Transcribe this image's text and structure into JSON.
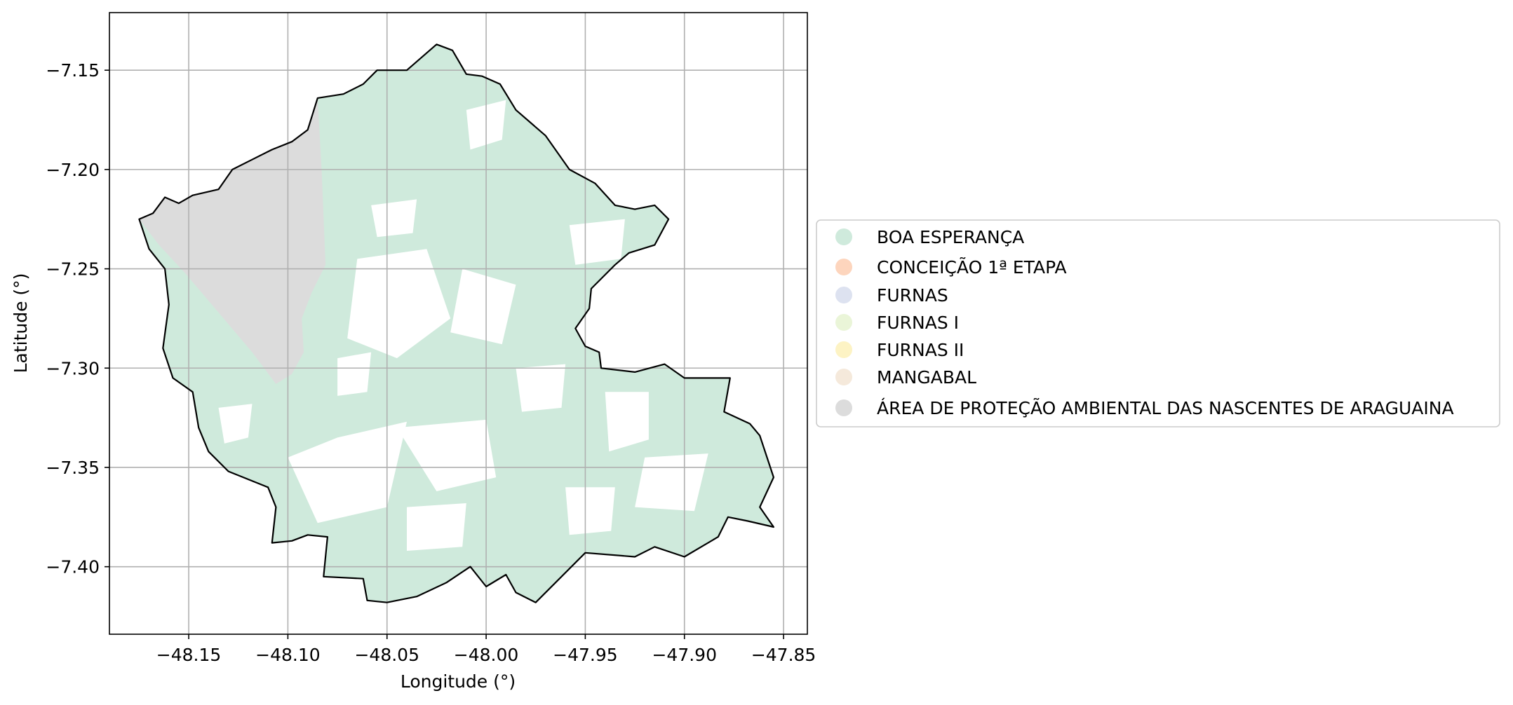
{
  "chart_data": {
    "type": "map",
    "xlabel": "Longitude (°)",
    "ylabel": "Latitude (°)",
    "xlim": [
      -48.19,
      -47.838
    ],
    "ylim": [
      -7.434,
      -7.121
    ],
    "xticks": [
      -48.15,
      -48.1,
      -48.05,
      -48.0,
      -47.95,
      -47.9,
      -47.85
    ],
    "xtick_labels": [
      "−48.15",
      "−48.10",
      "−48.05",
      "−48.00",
      "−47.95",
      "−47.90",
      "−47.85"
    ],
    "yticks": [
      -7.15,
      -7.2,
      -7.25,
      -7.3,
      -7.35,
      -7.4
    ],
    "ytick_labels": [
      "−7.15",
      "−7.20",
      "−7.25",
      "−7.30",
      "−7.35",
      "−7.40"
    ],
    "grid": true,
    "legend_position": "center-left outside",
    "legend": [
      {
        "label": "BOA ESPERANÇA",
        "color": "#cfeadc"
      },
      {
        "label": "CONCEIÇÃO 1ª ETAPA",
        "color": "#fdd5bd"
      },
      {
        "label": "FURNAS",
        "color": "#dde2f0"
      },
      {
        "label": "FURNAS I",
        "color": "#eaf5d8"
      },
      {
        "label": "FURNAS II",
        "color": "#fdf3c4"
      },
      {
        "label": "MANGABAL",
        "color": "#f5e9db"
      },
      {
        "label": "ÁREA DE PROTEÇÃO AMBIENTAL DAS NASCENTES DE ARAGUAINA",
        "color": "#dcdcdc"
      }
    ],
    "boundary_polygon": [
      [
        -48.175,
        -7.225
      ],
      [
        -48.168,
        -7.222
      ],
      [
        -48.162,
        -7.214
      ],
      [
        -48.155,
        -7.217
      ],
      [
        -48.148,
        -7.213
      ],
      [
        -48.135,
        -7.21
      ],
      [
        -48.128,
        -7.2
      ],
      [
        -48.118,
        -7.195
      ],
      [
        -48.108,
        -7.19
      ],
      [
        -48.098,
        -7.186
      ],
      [
        -48.09,
        -7.18
      ],
      [
        -48.085,
        -7.164
      ],
      [
        -48.072,
        -7.162
      ],
      [
        -48.062,
        -7.157
      ],
      [
        -48.055,
        -7.15
      ],
      [
        -48.04,
        -7.15
      ],
      [
        -48.025,
        -7.137
      ],
      [
        -48.017,
        -7.14
      ],
      [
        -48.01,
        -7.152
      ],
      [
        -48.002,
        -7.153
      ],
      [
        -47.993,
        -7.157
      ],
      [
        -47.985,
        -7.17
      ],
      [
        -47.97,
        -7.183
      ],
      [
        -47.958,
        -7.2
      ],
      [
        -47.945,
        -7.207
      ],
      [
        -47.935,
        -7.218
      ],
      [
        -47.925,
        -7.22
      ],
      [
        -47.915,
        -7.218
      ],
      [
        -47.908,
        -7.225
      ],
      [
        -47.915,
        -7.238
      ],
      [
        -47.928,
        -7.242
      ],
      [
        -47.935,
        -7.248
      ],
      [
        -47.947,
        -7.26
      ],
      [
        -47.948,
        -7.27
      ],
      [
        -47.955,
        -7.28
      ],
      [
        -47.95,
        -7.289
      ],
      [
        -47.943,
        -7.292
      ],
      [
        -47.942,
        -7.3
      ],
      [
        -47.925,
        -7.302
      ],
      [
        -47.91,
        -7.298
      ],
      [
        -47.9,
        -7.305
      ],
      [
        -47.877,
        -7.305
      ],
      [
        -47.88,
        -7.322
      ],
      [
        -47.867,
        -7.328
      ],
      [
        -47.862,
        -7.334
      ],
      [
        -47.855,
        -7.355
      ],
      [
        -47.862,
        -7.37
      ],
      [
        -47.855,
        -7.38
      ],
      [
        -47.868,
        -7.377
      ],
      [
        -47.878,
        -7.375
      ],
      [
        -47.883,
        -7.385
      ],
      [
        -47.9,
        -7.395
      ],
      [
        -47.915,
        -7.39
      ],
      [
        -47.925,
        -7.395
      ],
      [
        -47.95,
        -7.393
      ],
      [
        -47.962,
        -7.405
      ],
      [
        -47.975,
        -7.418
      ],
      [
        -47.985,
        -7.413
      ],
      [
        -47.99,
        -7.404
      ],
      [
        -48.0,
        -7.41
      ],
      [
        -48.008,
        -7.4
      ],
      [
        -48.02,
        -7.408
      ],
      [
        -48.035,
        -7.415
      ],
      [
        -48.05,
        -7.418
      ],
      [
        -48.06,
        -7.417
      ],
      [
        -48.062,
        -7.406
      ],
      [
        -48.082,
        -7.405
      ],
      [
        -48.08,
        -7.385
      ],
      [
        -48.09,
        -7.384
      ],
      [
        -48.098,
        -7.387
      ],
      [
        -48.108,
        -7.388
      ],
      [
        -48.106,
        -7.37
      ],
      [
        -48.11,
        -7.36
      ],
      [
        -48.13,
        -7.352
      ],
      [
        -48.14,
        -7.342
      ],
      [
        -48.145,
        -7.33
      ],
      [
        -48.148,
        -7.312
      ],
      [
        -48.158,
        -7.305
      ],
      [
        -48.163,
        -7.29
      ],
      [
        -48.16,
        -7.268
      ],
      [
        -48.162,
        -7.25
      ],
      [
        -48.17,
        -7.24
      ],
      [
        -48.175,
        -7.225
      ]
    ],
    "apa_polygon": [
      [
        -48.175,
        -7.225
      ],
      [
        -48.168,
        -7.222
      ],
      [
        -48.162,
        -7.214
      ],
      [
        -48.155,
        -7.217
      ],
      [
        -48.148,
        -7.213
      ],
      [
        -48.135,
        -7.21
      ],
      [
        -48.128,
        -7.2
      ],
      [
        -48.118,
        -7.195
      ],
      [
        -48.108,
        -7.19
      ],
      [
        -48.098,
        -7.186
      ],
      [
        -48.09,
        -7.18
      ],
      [
        -48.085,
        -7.164
      ],
      [
        -48.083,
        -7.2
      ],
      [
        -48.081,
        -7.248
      ],
      [
        -48.088,
        -7.262
      ],
      [
        -48.093,
        -7.275
      ],
      [
        -48.092,
        -7.292
      ],
      [
        -48.098,
        -7.303
      ],
      [
        -48.106,
        -7.308
      ],
      [
        -48.118,
        -7.292
      ],
      [
        -48.135,
        -7.272
      ],
      [
        -48.152,
        -7.252
      ],
      [
        -48.165,
        -7.238
      ],
      [
        -48.175,
        -7.225
      ]
    ],
    "cleared_areas": [
      [
        [
          -48.065,
          -7.245
        ],
        [
          -48.03,
          -7.24
        ],
        [
          -48.018,
          -7.275
        ],
        [
          -48.045,
          -7.295
        ],
        [
          -48.07,
          -7.285
        ]
      ],
      [
        [
          -48.075,
          -7.335
        ],
        [
          -48.04,
          -7.327
        ],
        [
          -48.05,
          -7.37
        ],
        [
          -48.085,
          -7.378
        ],
        [
          -48.1,
          -7.345
        ]
      ],
      [
        [
          -48.045,
          -7.33
        ],
        [
          -48.0,
          -7.326
        ],
        [
          -47.995,
          -7.355
        ],
        [
          -48.025,
          -7.362
        ]
      ],
      [
        [
          -48.012,
          -7.25
        ],
        [
          -47.985,
          -7.258
        ],
        [
          -47.992,
          -7.288
        ],
        [
          -48.018,
          -7.282
        ]
      ],
      [
        [
          -47.94,
          -7.312
        ],
        [
          -47.918,
          -7.312
        ],
        [
          -47.918,
          -7.336
        ],
        [
          -47.938,
          -7.342
        ]
      ],
      [
        [
          -47.92,
          -7.345
        ],
        [
          -47.888,
          -7.343
        ],
        [
          -47.895,
          -7.372
        ],
        [
          -47.925,
          -7.37
        ]
      ],
      [
        [
          -48.058,
          -7.218
        ],
        [
          -48.035,
          -7.215
        ],
        [
          -48.037,
          -7.232
        ],
        [
          -48.055,
          -7.234
        ]
      ],
      [
        [
          -47.958,
          -7.228
        ],
        [
          -47.93,
          -7.225
        ],
        [
          -47.932,
          -7.245
        ],
        [
          -47.955,
          -7.248
        ]
      ],
      [
        [
          -48.01,
          -7.17
        ],
        [
          -47.99,
          -7.165
        ],
        [
          -47.992,
          -7.185
        ],
        [
          -48.008,
          -7.19
        ]
      ],
      [
        [
          -47.985,
          -7.3
        ],
        [
          -47.96,
          -7.298
        ],
        [
          -47.962,
          -7.32
        ],
        [
          -47.982,
          -7.322
        ]
      ],
      [
        [
          -48.04,
          -7.37
        ],
        [
          -48.01,
          -7.368
        ],
        [
          -48.012,
          -7.39
        ],
        [
          -48.04,
          -7.392
        ]
      ],
      [
        [
          -47.96,
          -7.36
        ],
        [
          -47.935,
          -7.36
        ],
        [
          -47.937,
          -7.382
        ],
        [
          -47.958,
          -7.384
        ]
      ],
      [
        [
          -48.135,
          -7.32
        ],
        [
          -48.118,
          -7.318
        ],
        [
          -48.12,
          -7.335
        ],
        [
          -48.132,
          -7.338
        ]
      ],
      [
        [
          -48.075,
          -7.295
        ],
        [
          -48.058,
          -7.292
        ],
        [
          -48.06,
          -7.312
        ],
        [
          -48.075,
          -7.314
        ]
      ]
    ]
  }
}
